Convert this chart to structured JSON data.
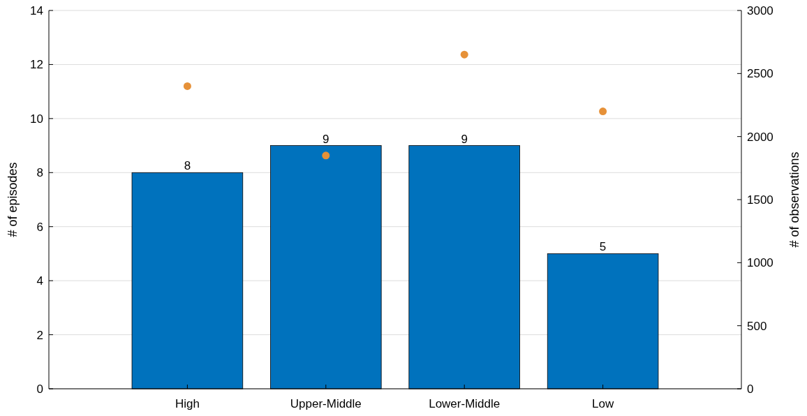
{
  "chart_data": {
    "type": "bar",
    "categories": [
      "High",
      "Upper-Middle",
      "Lower-Middle",
      "Low"
    ],
    "ylabel": "# of episodes",
    "y2label": "# of observations",
    "ylim": [
      0,
      14
    ],
    "yticks": [
      0,
      2,
      4,
      6,
      8,
      10,
      12,
      14
    ],
    "y2lim": [
      0,
      3000
    ],
    "y2ticks": [
      0,
      500,
      1000,
      1500,
      2000,
      2500,
      3000
    ],
    "grid": "y",
    "series": [
      {
        "color": "#0072bd",
        "values": [
          8,
          9,
          9,
          5
        ],
        "value_labels": [
          "8",
          "9",
          "9",
          "5"
        ]
      },
      {
        "type": "scatter",
        "axis": "y2",
        "color": "#e69138",
        "x": [
          "High",
          "Upper-Middle",
          "Lower-Middle",
          "Low"
        ],
        "values": [
          2400,
          1850,
          2650,
          2200
        ],
        "marker": "circle"
      }
    ]
  }
}
